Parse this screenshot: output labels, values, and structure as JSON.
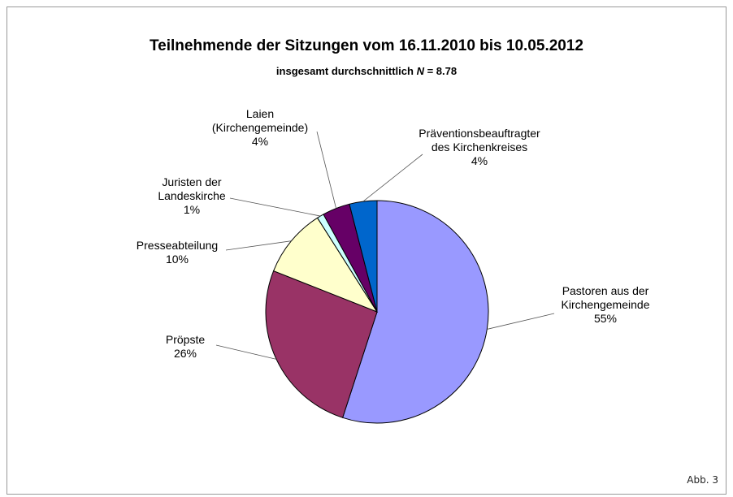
{
  "chart_data": {
    "type": "pie",
    "title": "Teilnehmende der Sitzungen vom 16.11.2010 bis 10.05.2012",
    "subtitle": {
      "prefix": "insgesamt durchschnittlich ",
      "variable": "N",
      "suffix": " = 8.78"
    },
    "categories": [
      "Pastoren aus der\nKirchengemeinde",
      "Pröpste",
      "Presseabteilung",
      "Juristen der\nLandeskirche",
      "Laien\n(Kirchengemeinde)",
      "Präventionsbeauftragter\ndes Kirchenkreises"
    ],
    "values": [
      55,
      26,
      10,
      1,
      4,
      4
    ],
    "value_labels": [
      "55%",
      "26%",
      "10%",
      "1%",
      "4%",
      "4%"
    ],
    "colors": [
      "#9999ff",
      "#993366",
      "#ffffcc",
      "#ccffff",
      "#660066",
      "#0066cc"
    ],
    "note": "Abb. 3"
  }
}
